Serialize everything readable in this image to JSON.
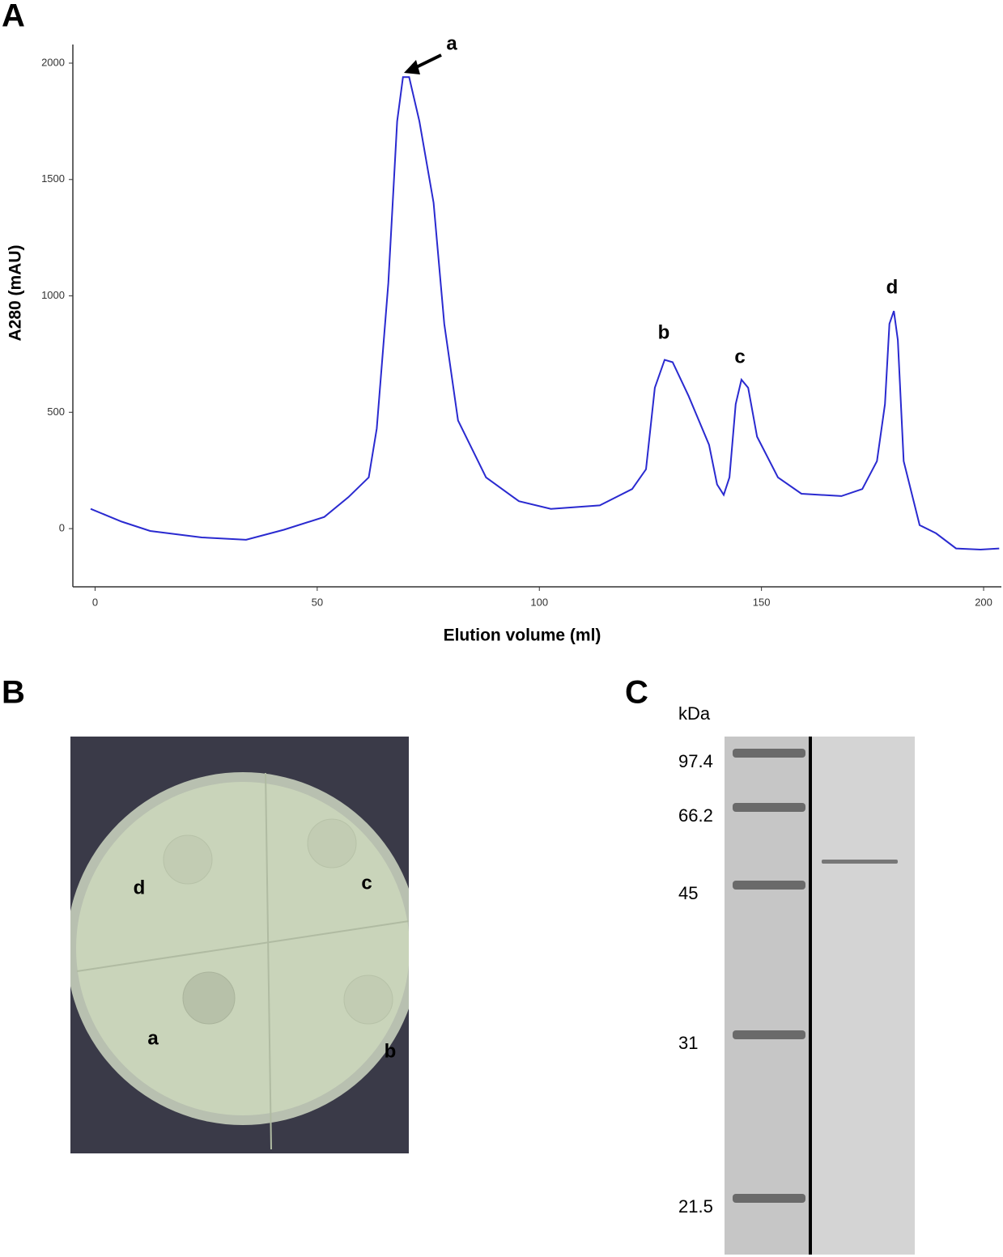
{
  "panel_labels": [
    "A",
    "B",
    "C"
  ],
  "chart_data": {
    "type": "line",
    "x_label": "Elution volume (ml)",
    "y_label": "A280  (mAU)",
    "x": [
      -1,
      6,
      12.4,
      24,
      34,
      42.5,
      51.6,
      57,
      61.6,
      63.4,
      66,
      68,
      69.3,
      70.7,
      73,
      76.2,
      78.6,
      81.7,
      88,
      95.4,
      102.6,
      113.6,
      120.9,
      124,
      126,
      128.2,
      130,
      133.6,
      138.2,
      140,
      141.5,
      142.8,
      144.2,
      145.5,
      147,
      149,
      153.7,
      159,
      168,
      172.7,
      176,
      177.8,
      178.8,
      179.8,
      180.7,
      182,
      185.6,
      189.3,
      193.8,
      199.3,
      203.5
    ],
    "series": [
      {
        "color": "#2a2ad0",
        "values": [
          85,
          30,
          -10,
          -38,
          -48,
          -5,
          50,
          135,
          220,
          430,
          1055,
          1750,
          1940,
          1940,
          1750,
          1400,
          880,
          465,
          220,
          118,
          85,
          100,
          170,
          255,
          605,
          725,
          715,
          570,
          360,
          190,
          145,
          220,
          535,
          640,
          605,
          395,
          220,
          150,
          140,
          170,
          290,
          535,
          880,
          935,
          810,
          290,
          15,
          -20,
          -85,
          -90,
          -85
        ]
      }
    ],
    "annotations": [
      "a",
      "b",
      "c",
      "d"
    ],
    "xlim": [
      -5,
      204
    ],
    "ylim": [
      -250,
      2080
    ],
    "xticks": [
      0,
      50,
      100,
      150,
      200
    ],
    "yticks": [
      0,
      500,
      1000,
      1500,
      2000
    ]
  },
  "plate": {
    "labels": [
      "d",
      "c",
      "a",
      "b"
    ]
  },
  "gel": {
    "unit": "kDa",
    "markers": [
      97.4,
      66.2,
      45,
      31,
      21.5
    ]
  }
}
